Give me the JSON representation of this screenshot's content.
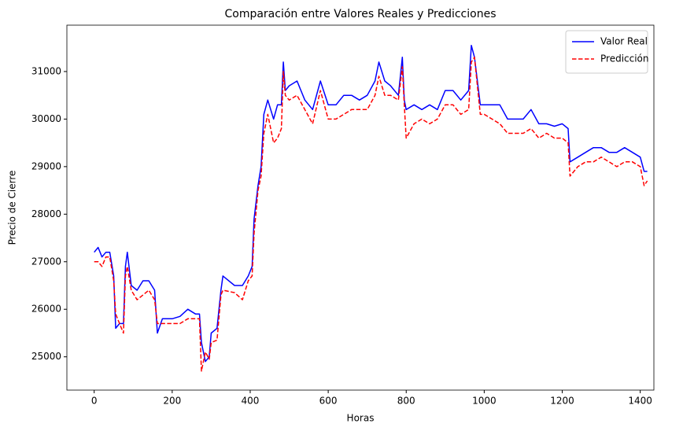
{
  "chart_data": {
    "type": "line",
    "title": "Comparación entre Valores Reales y Predicciones",
    "x_label": "Horas",
    "y_label": "Precio de Cierre",
    "x": [
      0,
      10,
      20,
      30,
      40,
      50,
      55,
      65,
      75,
      80,
      85,
      95,
      110,
      125,
      140,
      155,
      162,
      175,
      200,
      220,
      240,
      260,
      270,
      275,
      285,
      295,
      300,
      315,
      325,
      330,
      360,
      380,
      395,
      405,
      410,
      420,
      428,
      435,
      445,
      460,
      470,
      480,
      485,
      490,
      500,
      520,
      540,
      560,
      580,
      600,
      620,
      640,
      660,
      680,
      700,
      720,
      730,
      745,
      760,
      780,
      790,
      795,
      800,
      820,
      840,
      860,
      880,
      900,
      920,
      940,
      960,
      967,
      975,
      990,
      1000,
      1020,
      1040,
      1060,
      1080,
      1100,
      1120,
      1140,
      1160,
      1180,
      1200,
      1215,
      1220,
      1240,
      1260,
      1280,
      1300,
      1320,
      1340,
      1360,
      1380,
      1400,
      1410,
      1418
    ],
    "series": [
      {
        "name": "Valor Real",
        "color": "#0000ff",
        "linestyle": "solid",
        "values": [
          27200,
          27300,
          27100,
          27200,
          27200,
          26700,
          25600,
          25700,
          25700,
          26900,
          27200,
          26500,
          26400,
          26600,
          26600,
          26400,
          25500,
          25800,
          25800,
          25850,
          26000,
          25900,
          25900,
          25300,
          24900,
          25000,
          25500,
          25600,
          26400,
          26700,
          26500,
          26500,
          26700,
          26900,
          27900,
          28600,
          29000,
          30100,
          30400,
          30000,
          30300,
          30300,
          31200,
          30600,
          30700,
          30800,
          30400,
          30200,
          30800,
          30300,
          30300,
          30500,
          30500,
          30400,
          30500,
          30800,
          31200,
          30800,
          30700,
          30500,
          31300,
          30400,
          30200,
          30300,
          30200,
          30300,
          30200,
          30600,
          30600,
          30400,
          30600,
          31550,
          31300,
          30300,
          30300,
          30300,
          30300,
          30000,
          30000,
          30000,
          30200,
          29900,
          29900,
          29850,
          29900,
          29800,
          29100,
          29200,
          29300,
          29400,
          29400,
          29300,
          29300,
          29400,
          29300,
          29200,
          28900,
          28900
        ]
      },
      {
        "name": "Predicción",
        "color": "#ff0000",
        "linestyle": "dashed",
        "values": [
          27000,
          27000,
          26900,
          27100,
          27100,
          26600,
          25900,
          25700,
          25500,
          26700,
          26900,
          26400,
          26200,
          26300,
          26400,
          26200,
          25700,
          25700,
          25700,
          25700,
          25800,
          25800,
          25800,
          24700,
          25100,
          24950,
          25300,
          25350,
          26300,
          26400,
          26350,
          26200,
          26600,
          26700,
          27600,
          28500,
          28800,
          29700,
          30100,
          29500,
          29600,
          29800,
          31000,
          30500,
          30400,
          30500,
          30200,
          29900,
          30600,
          30000,
          30000,
          30100,
          30200,
          30200,
          30200,
          30500,
          30900,
          30500,
          30500,
          30400,
          31100,
          30300,
          29600,
          29900,
          30000,
          29900,
          30000,
          30300,
          30300,
          30100,
          30200,
          31200,
          31300,
          30100,
          30100,
          30000,
          29900,
          29700,
          29700,
          29700,
          29800,
          29600,
          29700,
          29600,
          29600,
          29500,
          28800,
          29000,
          29100,
          29100,
          29200,
          29100,
          29000,
          29100,
          29100,
          29000,
          28600,
          28700
        ]
      }
    ],
    "xlim": [
      -70,
      1435
    ],
    "ylim": [
      24300,
      31975
    ],
    "xticks": [
      0,
      200,
      400,
      600,
      800,
      1000,
      1200,
      1400
    ],
    "yticks": [
      25000,
      26000,
      27000,
      28000,
      29000,
      30000,
      31000
    ],
    "grid": false,
    "legend": "upper right"
  }
}
